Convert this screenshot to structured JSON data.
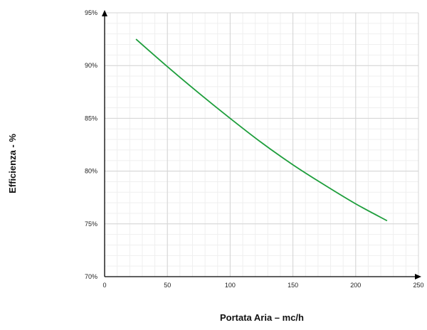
{
  "chart_data": {
    "type": "line",
    "xlabel": "Portata Aria – mc/h",
    "ylabel": "Efficienza - %",
    "xlim": [
      0,
      250
    ],
    "ylim": [
      70,
      95
    ],
    "x_ticks": [
      "0",
      "50",
      "100",
      "150",
      "200",
      "250"
    ],
    "y_ticks": [
      "70%",
      "75%",
      "80%",
      "85%",
      "90%",
      "95%"
    ],
    "grid": true,
    "series": [
      {
        "color": "#1e9e3c",
        "x": [
          25,
          50,
          75,
          100,
          125,
          150,
          175,
          200,
          225
        ],
        "y": [
          92.5,
          89.9,
          87.4,
          85.0,
          82.7,
          80.6,
          78.7,
          76.9,
          75.3
        ]
      }
    ]
  }
}
